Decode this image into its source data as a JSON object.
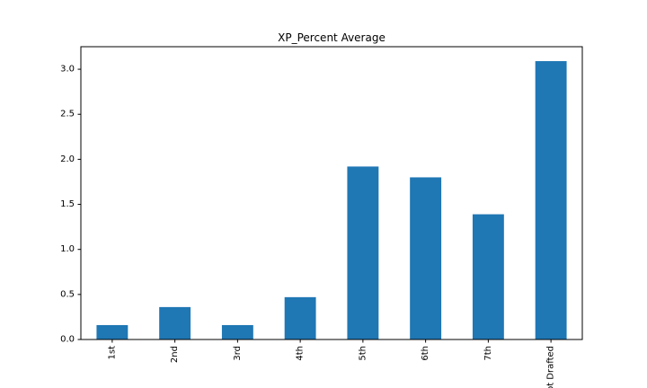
{
  "chart_data": {
    "type": "bar",
    "title": "XP_Percent Average",
    "xlabel": "",
    "ylabel": "",
    "categories": [
      "1st",
      "2nd",
      "3rd",
      "4th",
      "5th",
      "6th",
      "7th",
      "Not Drafted"
    ],
    "values": [
      0.16,
      0.36,
      0.16,
      0.47,
      1.92,
      1.8,
      1.39,
      3.09
    ],
    "ylim": [
      0,
      3.25
    ],
    "yticks": [
      0.0,
      0.5,
      1.0,
      1.5,
      2.0,
      2.5,
      3.0
    ],
    "ytick_labels": [
      "0.0",
      "0.5",
      "1.0",
      "1.5",
      "2.0",
      "2.5",
      "3.0"
    ],
    "bar_color": "#1f77b4",
    "legend": "none",
    "grid": false
  }
}
